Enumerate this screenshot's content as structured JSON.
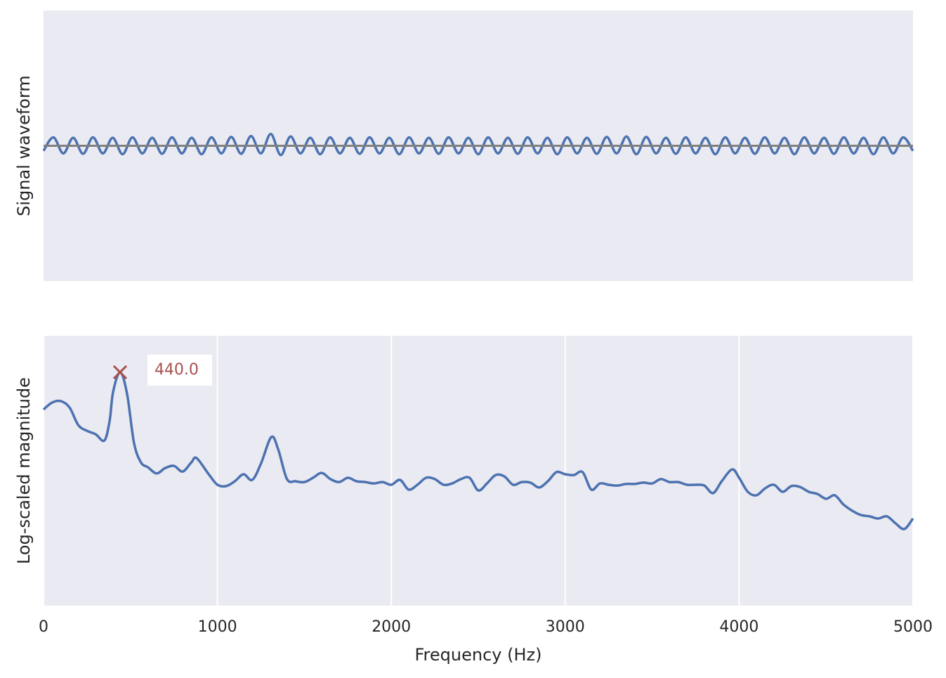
{
  "chart_data": [
    {
      "type": "line",
      "ylabel": "Signal waveform",
      "ylim": [
        -16,
        16
      ],
      "hline": {
        "value": 0,
        "color": "#808080"
      },
      "series": [
        {
          "color": "#4c72b0",
          "values": [
            -0.6,
            1,
            -0.9,
            0.95,
            -0.95,
            1,
            -0.9,
            0.95,
            -1,
            1,
            -0.9,
            0.95,
            -0.95,
            1,
            -0.9,
            0.95,
            -1,
            1,
            -0.9,
            1.05,
            -0.95,
            1.15,
            -0.9,
            1.4,
            -1.1,
            1.1,
            -0.9,
            0.95,
            -1,
            1,
            -0.9,
            0.95,
            -0.95,
            1,
            -0.9,
            0.95,
            -1,
            1,
            -0.9,
            0.95,
            -0.95,
            1,
            -0.9,
            0.95,
            -1,
            1,
            -0.9,
            0.95,
            -0.95,
            1,
            -0.9,
            0.95,
            -1,
            1,
            -0.9,
            0.95,
            -0.95,
            1.05,
            -0.9,
            1.1,
            -1,
            1.05,
            -0.9,
            0.95,
            -0.95,
            1,
            -0.9,
            0.95,
            -1,
            1,
            -0.9,
            0.95,
            -0.95,
            1,
            -0.9,
            0.95,
            -1,
            1,
            -0.9,
            0.95,
            -0.95,
            1,
            -0.9,
            0.95,
            -1,
            1,
            -0.9,
            1,
            -0.6
          ]
        }
      ]
    },
    {
      "type": "line",
      "xlabel": "Frequency (Hz)",
      "ylabel": "Log-scaled magnitude",
      "xlim": [
        0,
        5000
      ],
      "xticks": [
        0,
        1000,
        2000,
        3000,
        4000,
        5000
      ],
      "ylim": [
        0,
        10
      ],
      "grid": true,
      "x": [
        0,
        50,
        100,
        150,
        200,
        250,
        300,
        350,
        380,
        400,
        440,
        480,
        520,
        560,
        600,
        650,
        700,
        750,
        800,
        850,
        880,
        950,
        1000,
        1050,
        1100,
        1150,
        1200,
        1250,
        1310,
        1350,
        1400,
        1450,
        1500,
        1550,
        1600,
        1650,
        1700,
        1750,
        1800,
        1850,
        1900,
        1950,
        2000,
        2050,
        2100,
        2150,
        2200,
        2250,
        2300,
        2350,
        2400,
        2450,
        2500,
        2550,
        2600,
        2650,
        2700,
        2750,
        2800,
        2850,
        2900,
        2950,
        3000,
        3050,
        3100,
        3150,
        3200,
        3250,
        3300,
        3350,
        3400,
        3450,
        3500,
        3550,
        3600,
        3650,
        3700,
        3750,
        3800,
        3850,
        3900,
        3960,
        4000,
        4050,
        4100,
        4150,
        4200,
        4250,
        4300,
        4350,
        4400,
        4450,
        4500,
        4550,
        4600,
        4650,
        4700,
        4750,
        4800,
        4850,
        4900,
        4950,
        5000
      ],
      "series": [
        {
          "color": "#4c72b0",
          "values": [
            7.27,
            7.53,
            7.58,
            7.34,
            6.69,
            6.48,
            6.35,
            6.12,
            6.85,
            7.92,
            8.65,
            7.86,
            6.04,
            5.31,
            5.13,
            4.9,
            5.1,
            5.18,
            4.97,
            5.31,
            5.47,
            4.87,
            4.48,
            4.43,
            4.61,
            4.87,
            4.66,
            5.26,
            6.25,
            5.78,
            4.69,
            4.61,
            4.58,
            4.74,
            4.92,
            4.69,
            4.58,
            4.74,
            4.61,
            4.58,
            4.53,
            4.58,
            4.48,
            4.66,
            4.3,
            4.48,
            4.74,
            4.69,
            4.48,
            4.53,
            4.69,
            4.74,
            4.27,
            4.53,
            4.84,
            4.79,
            4.48,
            4.58,
            4.56,
            4.38,
            4.61,
            4.95,
            4.87,
            4.84,
            4.95,
            4.3,
            4.53,
            4.48,
            4.45,
            4.51,
            4.51,
            4.56,
            4.53,
            4.69,
            4.58,
            4.58,
            4.48,
            4.48,
            4.45,
            4.17,
            4.61,
            5.05,
            4.74,
            4.22,
            4.09,
            4.35,
            4.48,
            4.22,
            4.43,
            4.4,
            4.22,
            4.14,
            3.96,
            4.09,
            3.75,
            3.52,
            3.36,
            3.31,
            3.23,
            3.31,
            3.05,
            2.84,
            3.23
          ]
        }
      ],
      "annotations": [
        {
          "text": "440.0",
          "x": 440,
          "y": 8.65,
          "color": "#a9504f",
          "marker": "x"
        }
      ]
    }
  ]
}
